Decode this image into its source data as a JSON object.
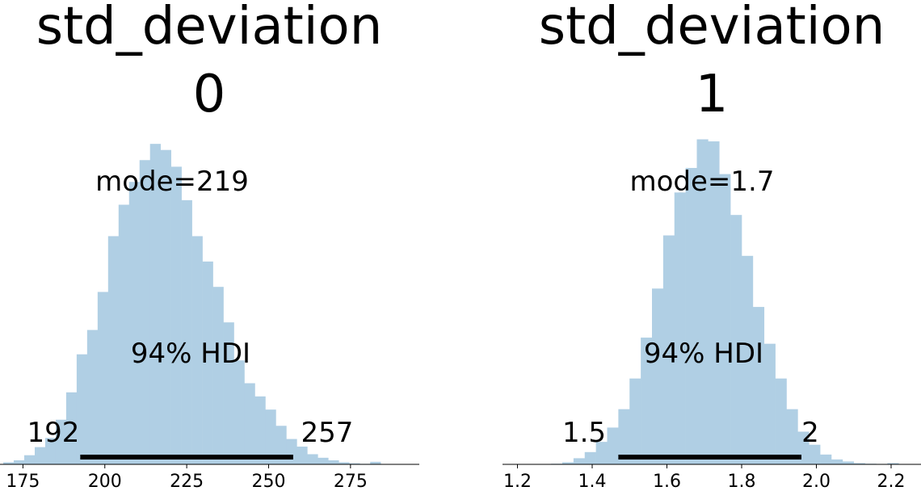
{
  "colors": {
    "bar": "#b0cfe4",
    "hdi_line": "#000000",
    "axis": "#000000"
  },
  "chart_data": [
    {
      "type": "bar",
      "title_line1": "std_deviation",
      "title_line2": "0",
      "mode_label": "mode=219",
      "hdi_label": "94% HDI",
      "hdi_low_label": "192",
      "hdi_high_label": "257",
      "hdi": [
        192.5,
        257.5
      ],
      "xlim": [
        168,
        296
      ],
      "ticks": [
        175,
        200,
        225,
        250,
        275
      ],
      "tick_labels": [
        "175",
        "200",
        "225",
        "250",
        "275"
      ],
      "bin_start": 169,
      "bin_width": 3.2,
      "counts": [
        0.4,
        0.8,
        1.8,
        3.4,
        5.2,
        8.8,
        14.2,
        21.7,
        26.5,
        34.0,
        45.0,
        51.2,
        55.7,
        60.0,
        63.2,
        62.0,
        58.7,
        52.1,
        45.0,
        40.0,
        35.0,
        28.0,
        20.5,
        16.0,
        13.4,
        10.8,
        7.6,
        5.0,
        3.5,
        2.0,
        1.3,
        0.8,
        0.4,
        0.2,
        0.1,
        0.5
      ],
      "ylim": [
        0,
        64.5
      ]
    },
    {
      "type": "bar",
      "title_line1": "std_deviation",
      "title_line2": "1",
      "mode_label": "mode=1.7",
      "hdi_label": "94% HDI",
      "hdi_low_label": "1.5",
      "hdi_high_label": "2",
      "hdi": [
        1.47,
        1.96
      ],
      "xlim": [
        1.16,
        2.28
      ],
      "ticks": [
        1.2,
        1.4,
        1.6,
        1.8,
        2.0,
        2.2
      ],
      "tick_labels": [
        "1.2",
        "1.4",
        "1.6",
        "1.8",
        "2.0",
        "2.2"
      ],
      "bin_start": 1.29,
      "bin_width": 0.03,
      "counts": [
        0.15,
        0.5,
        1.5,
        3.0,
        5.5,
        9.0,
        13.5,
        21.0,
        31.0,
        43.0,
        56.0,
        66.5,
        72.5,
        79.5,
        79.0,
        71.0,
        61.0,
        51.0,
        38.5,
        29.5,
        21.0,
        13.5,
        8.0,
        4.8,
        2.4,
        1.2,
        0.7,
        0.3,
        0.15,
        0.1,
        0.3
      ],
      "ylim": [
        0,
        80
      ]
    }
  ]
}
